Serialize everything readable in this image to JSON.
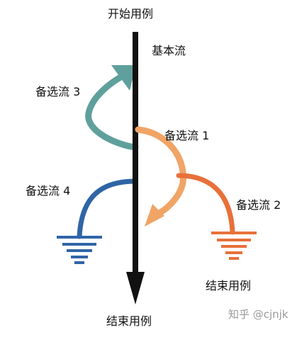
{
  "labels": {
    "start": "开始用例",
    "basic_flow": "基本流",
    "alt_flow_1": "备选流 1",
    "alt_flow_2": "备选流 2",
    "alt_flow_3": "备选流 3",
    "alt_flow_4": "备选流 4",
    "end_main": "结束用例",
    "end_alt": "结束用例"
  },
  "watermark": "知乎 @cjnjk",
  "colors": {
    "main_line": "#111111",
    "alt_flow_1": "#f0a466",
    "alt_flow_2": "#e8703a",
    "alt_flow_3": "#5fa09c",
    "alt_flow_4": "#2f65a6",
    "end_alt": "#e8703a"
  },
  "icons": {
    "end_alt_flow_2": "ground-symbol-icon",
    "end_alt_flow_4": "ground-symbol-icon"
  }
}
